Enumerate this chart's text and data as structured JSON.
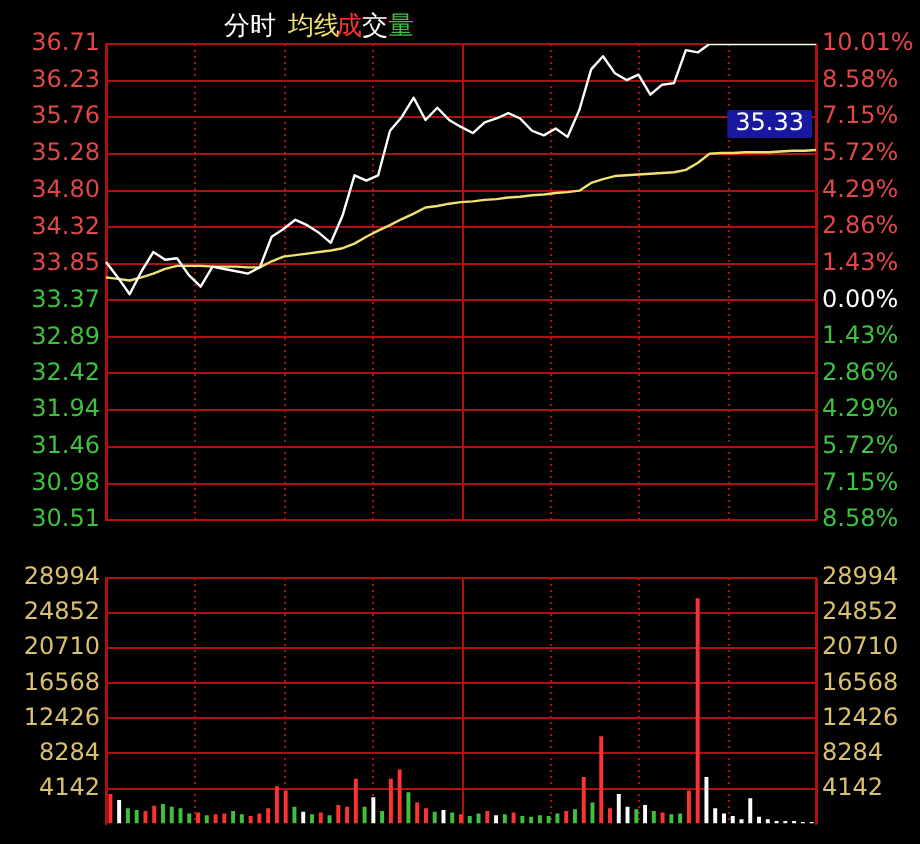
{
  "chart_data": [
    {
      "type": "line",
      "title": "分时",
      "grid": true,
      "marker": "none",
      "tick_labels": "y",
      "categories": [
        null,
        null,
        null,
        null,
        null,
        null,
        null,
        null,
        null,
        null,
        null,
        null,
        null,
        null,
        null,
        null,
        null,
        null,
        null,
        null,
        null,
        null,
        null,
        null,
        null,
        null,
        null,
        null,
        null,
        null,
        null,
        null,
        null,
        null,
        null,
        null,
        null,
        null,
        null,
        null,
        null,
        null,
        null,
        null,
        null,
        null,
        null,
        null,
        null,
        null,
        null,
        null,
        null,
        null,
        null,
        null,
        null,
        null,
        null,
        null,
        null
      ],
      "ylim": [
        30.51,
        36.71
      ],
      "yticks": [
        36.71,
        36.23,
        35.76,
        35.28,
        {
          "value": 34.8,
          "label": "34.80"
        },
        34.32,
        33.85,
        33.37,
        32.89,
        32.42,
        31.94,
        31.46,
        30.98,
        30.51
      ],
      "y2lim": [
        -8.58,
        10.01
      ],
      "y2ticks": [
        {
          "value": 10.01,
          "label": "10.01%"
        },
        {
          "value": 8.58,
          "label": "8.58%"
        },
        {
          "value": 7.15,
          "label": "7.15%"
        },
        {
          "value": 5.72,
          "label": "5.72%"
        },
        {
          "value": 4.29,
          "label": "4.29%"
        },
        {
          "value": 2.86,
          "label": "2.86%"
        },
        {
          "value": 1.43,
          "label": "1.43%"
        },
        {
          "value": 0,
          "label": "0.00%"
        },
        {
          "value": -1.43,
          "label": "1.43%"
        },
        {
          "value": -2.86,
          "label": "2.86%"
        },
        {
          "value": -4.29,
          "label": "4.29%"
        },
        {
          "value": -5.72,
          "label": "5.72%"
        },
        {
          "value": -7.15,
          "label": "7.15%"
        },
        {
          "value": -8.58,
          "label": "8.58%"
        }
      ],
      "annotations": [
        "35.33"
      ],
      "series": [
        {
          "color": "#ffffff",
          "values": [
            33.87,
            33.67,
            33.45,
            33.75,
            34.0,
            33.9,
            33.92,
            33.7,
            33.55,
            33.81,
            33.78,
            33.75,
            33.72,
            33.8,
            34.2,
            34.3,
            34.42,
            34.35,
            34.25,
            34.12,
            34.48,
            35.0,
            34.93,
            35.0,
            35.58,
            35.76,
            36.01,
            35.72,
            35.88,
            35.72,
            35.63,
            35.55,
            35.69,
            35.74,
            35.81,
            35.74,
            35.58,
            35.52,
            35.61,
            35.5,
            35.85,
            36.38,
            36.55,
            36.33,
            36.24,
            36.31,
            36.05,
            36.18,
            36.2,
            36.63,
            36.6,
            36.71,
            36.71,
            36.71,
            36.71,
            36.71,
            36.71,
            36.71,
            36.71,
            36.71,
            36.71
          ]
        },
        {
          "name": "均线",
          "color": "#f0e070",
          "values": [
            33.67,
            33.65,
            33.63,
            33.67,
            33.72,
            33.78,
            33.82,
            33.82,
            33.82,
            33.81,
            33.81,
            33.81,
            33.8,
            33.8,
            33.88,
            33.94,
            33.96,
            33.98,
            34.0,
            34.02,
            34.05,
            34.11,
            34.2,
            34.28,
            34.35,
            34.43,
            34.5,
            34.58,
            34.6,
            34.63,
            34.65,
            34.66,
            34.68,
            34.69,
            34.71,
            34.72,
            34.74,
            34.75,
            34.77,
            34.78,
            34.8,
            34.9,
            34.95,
            34.99,
            35.0,
            35.01,
            35.02,
            35.03,
            35.04,
            35.07,
            35.16,
            35.28,
            35.29,
            35.29,
            35.3,
            35.3,
            35.3,
            35.31,
            35.32,
            35.32,
            35.33
          ]
        }
      ]
    },
    {
      "type": "bar",
      "grid": true,
      "tick_labels": "y",
      "categories": [
        null,
        null,
        null,
        null,
        null,
        null,
        null,
        null,
        null,
        null,
        null,
        null,
        null,
        null,
        null,
        null,
        null,
        null,
        null,
        null,
        null,
        null,
        null,
        null,
        null,
        null,
        null,
        null,
        null,
        null,
        null,
        null,
        null,
        null,
        null,
        null,
        null,
        null,
        null,
        null,
        null,
        null,
        null,
        null,
        null,
        null,
        null,
        null,
        null,
        null,
        null,
        null,
        null,
        null,
        null,
        null,
        null,
        null,
        null,
        null,
        null,
        null,
        null,
        null,
        null,
        null,
        null,
        null,
        null,
        null,
        null,
        null,
        null,
        null,
        null,
        null,
        null,
        null,
        null,
        null,
        null
      ],
      "ylim": [
        0,
        28994
      ],
      "yticks": [
        4142,
        8284,
        12426,
        16568,
        20710,
        24852,
        28994
      ],
      "y2lim": [
        0,
        28994
      ],
      "y2ticks": [
        4142,
        8284,
        12426,
        16568,
        20710,
        24852,
        28994
      ],
      "series": [
        {
          "name": "成交量",
          "values": [
            3500,
            2800,
            1800,
            1600,
            1500,
            2100,
            2300,
            2000,
            1800,
            1200,
            1300,
            1000,
            1100,
            1200,
            1500,
            1100,
            900,
            1200,
            1800,
            4400,
            3900,
            2000,
            1400,
            1100,
            1300,
            1000,
            2200,
            2000,
            5300,
            2000,
            3100,
            1500,
            5300,
            6400,
            3700,
            2500,
            1800,
            1400,
            1600,
            1300,
            1100,
            900,
            1200,
            1500,
            1000,
            1100,
            1300,
            900,
            800,
            1000,
            900,
            1200,
            1500,
            1700,
            5500,
            2500,
            10300,
            1800,
            3500,
            2000,
            1700,
            2200,
            1500,
            1300,
            1100,
            1200,
            3900,
            26600,
            5500,
            1800,
            1200,
            900,
            500,
            3000,
            800,
            500,
            300,
            300,
            300,
            200,
            200
          ],
          "colors": [
            "#ff3232",
            "#ffffff",
            "#40c040",
            "#40c040",
            "#ff3232",
            "#ff3232",
            "#40c040",
            "#40c040",
            "#40c040",
            "#40c040",
            "#ff3232",
            "#40c040",
            "#ff3232",
            "#ff3232",
            "#40c040",
            "#40c040",
            "#ff3232",
            "#ff3232",
            "#ff3232",
            "#ff3232",
            "#ff3232",
            "#40c040",
            "#ffffff",
            "#40c040",
            "#ff3232",
            "#40c040",
            "#ff3232",
            "#ff3232",
            "#ff3232",
            "#40c040",
            "#ffffff",
            "#40c040",
            "#ff3232",
            "#ff3232",
            "#40c040",
            "#ff3232",
            "#ff3232",
            "#40c040",
            "#ffffff",
            "#40c040",
            "#ff3232",
            "#40c040",
            "#40c040",
            "#ff3232",
            "#ffffff",
            "#40c040",
            "#ff3232",
            "#40c040",
            "#40c040",
            "#40c040",
            "#40c040",
            "#40c040",
            "#ff3232",
            "#40c040",
            "#ff3232",
            "#40c040",
            "#ff3232",
            "#ff3232",
            "#ffffff",
            "#ffffff",
            "#40c040",
            "#ffffff",
            "#40c040",
            "#ff3232",
            "#40c040",
            "#40c040",
            "#ff3232",
            "#ff3232",
            "#ffffff",
            "#ffffff",
            "#ffffff",
            "#ffffff",
            "#ffffff",
            "#ffffff",
            "#ffffff",
            "#ffffff",
            "#ffffff",
            "#ffffff",
            "#ffffff",
            "#ffffff",
            "#ffffff"
          ]
        }
      ]
    }
  ]
}
